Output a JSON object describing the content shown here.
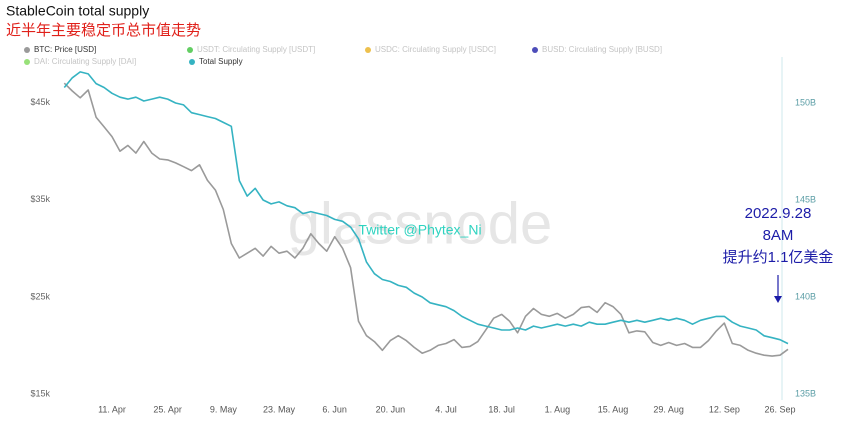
{
  "chart_data": {
    "type": "line",
    "title": "StableCoin total supply",
    "subtitle": "近半年主要稳定币总市值走势",
    "watermark": "glassnode",
    "credit": "Twitter @Phytex_Ni",
    "annotation": {
      "lines": [
        "2022.9.28",
        "8AM",
        "提升约1.1亿美金"
      ],
      "color": "#1c1ca8"
    },
    "legend_inactive": [
      {
        "name": "USDT: Circulating Supply [USDT]",
        "color": "#3cc23c"
      },
      {
        "name": "USDC: Circulating Supply [USDC]",
        "color": "#e8b020"
      },
      {
        "name": "BUSD: Circulating Supply [BUSD]",
        "color": "#2020a8"
      },
      {
        "name": "DAI: Circulating Supply [DAI]",
        "color": "#7ed957"
      }
    ],
    "categories": [
      null,
      null,
      null,
      null,
      null,
      null,
      "11. Apr",
      null,
      null,
      null,
      null,
      null,
      null,
      "25. Apr",
      null,
      null,
      null,
      null,
      null,
      null,
      "9. May",
      null,
      null,
      null,
      null,
      null,
      null,
      "23. May",
      null,
      null,
      null,
      null,
      null,
      null,
      "6. Jun",
      null,
      null,
      null,
      null,
      null,
      null,
      "20. Jun",
      null,
      null,
      null,
      null,
      null,
      null,
      "4. Jul",
      null,
      null,
      null,
      null,
      null,
      null,
      "18. Jul",
      null,
      null,
      null,
      null,
      null,
      null,
      "1. Aug",
      null,
      null,
      null,
      null,
      null,
      null,
      "15. Aug",
      null,
      null,
      null,
      null,
      null,
      null,
      "29. Aug",
      null,
      null,
      null,
      null,
      null,
      null,
      "12. Sep",
      null,
      null,
      null,
      null,
      null,
      null,
      "26. Sep",
      null
    ],
    "series": [
      {
        "name": "BTC: Price [USD]",
        "color": "#9a9a9a",
        "axis": "y",
        "values": [
          47000,
          46200,
          45500,
          46300,
          43500,
          42500,
          41500,
          40000,
          40600,
          39800,
          41000,
          39800,
          39200,
          39100,
          38800,
          38400,
          38000,
          38600,
          37000,
          36000,
          34000,
          30500,
          29000,
          29500,
          30000,
          29200,
          30200,
          29500,
          29700,
          29000,
          30000,
          31500,
          30500,
          29700,
          31200,
          30000,
          28000,
          22500,
          21000,
          20400,
          19500,
          20500,
          21000,
          20500,
          19800,
          19200,
          19500,
          20000,
          20200,
          20600,
          19800,
          19900,
          20400,
          21600,
          22800,
          23200,
          22500,
          21300,
          23000,
          23800,
          23200,
          23000,
          23300,
          22800,
          23200,
          23900,
          24000,
          23400,
          24400,
          24000,
          23200,
          21300,
          21500,
          21400,
          20300,
          20000,
          20300,
          20000,
          20200,
          19800,
          19800,
          20500,
          21500,
          22300,
          20200,
          20000,
          19500,
          19200,
          19000,
          18900,
          19000,
          19600
        ]
      },
      {
        "name": "Total Supply",
        "color": "#35b3c2",
        "axis": "y2",
        "values": [
          150800000000.0,
          151300000000.0,
          151600000000.0,
          151500000000.0,
          151000000000.0,
          150800000000.0,
          150500000000.0,
          150300000000.0,
          150200000000.0,
          150300000000.0,
          150100000000.0,
          150200000000.0,
          150300000000.0,
          150200000000.0,
          150000000000.0,
          149900000000.0,
          149500000000.0,
          149400000000.0,
          149300000000.0,
          149200000000.0,
          149000000000.0,
          148800000000.0,
          146000000000.0,
          145200000000.0,
          145600000000.0,
          145000000000.0,
          144800000000.0,
          144900000000.0,
          144700000000.0,
          144600000000.0,
          144300000000.0,
          144400000000.0,
          144300000000.0,
          144200000000.0,
          144000000000.0,
          143900000000.0,
          143600000000.0,
          143000000000.0,
          141800000000.0,
          141200000000.0,
          140900000000.0,
          140800000000.0,
          140600000000.0,
          140500000000.0,
          140200000000.0,
          140000000000.0,
          139700000000.0,
          139600000000.0,
          139500000000.0,
          139300000000.0,
          139000000000.0,
          138800000000.0,
          138600000000.0,
          138500000000.0,
          138400000000.0,
          138300000000.0,
          138300000000.0,
          138400000000.0,
          138300000000.0,
          138500000000.0,
          138400000000.0,
          138500000000.0,
          138600000000.0,
          138500000000.0,
          138600000000.0,
          138500000000.0,
          138700000000.0,
          138600000000.0,
          138600000000.0,
          138700000000.0,
          138800000000.0,
          138700000000.0,
          138800000000.0,
          138700000000.0,
          138800000000.0,
          138900000000.0,
          138800000000.0,
          138900000000.0,
          138800000000.0,
          138600000000.0,
          138800000000.0,
          138900000000.0,
          139000000000.0,
          139000000000.0,
          138700000000.0,
          138500000000.0,
          138400000000.0,
          138300000000.0,
          138000000000.0,
          137900000000.0,
          137800000000.0,
          137600000000.0
        ]
      }
    ],
    "ylim": [
      15000,
      49700
    ],
    "yticks": [
      {
        "value": 15000,
        "label": "$15k"
      },
      {
        "value": 25000,
        "label": "$25k"
      },
      {
        "value": 35000,
        "label": "$35k"
      },
      {
        "value": 45000,
        "label": "$45k"
      }
    ],
    "y2lim": [
      135000000000.0,
      152370000000.0
    ],
    "y2ticks": [
      {
        "value": 135000000000.0,
        "label": "135B"
      },
      {
        "value": 140000000000.0,
        "label": "140B"
      },
      {
        "value": 145000000000.0,
        "label": "145B"
      },
      {
        "value": 150000000000.0,
        "label": "150B"
      }
    ],
    "grid": false
  }
}
